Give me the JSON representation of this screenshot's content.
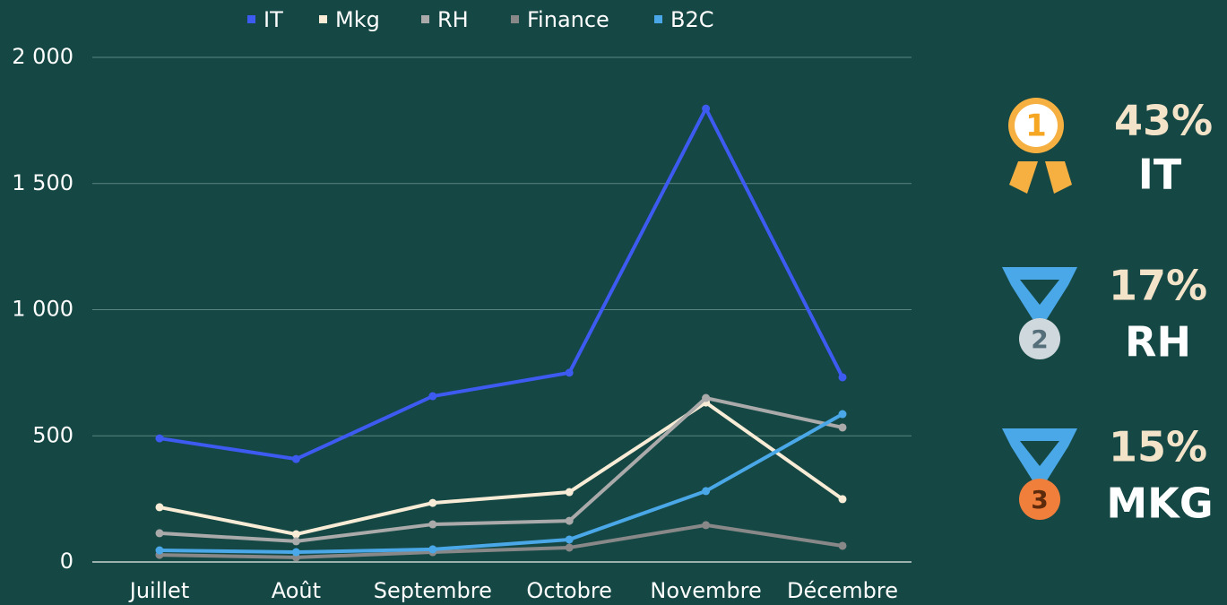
{
  "chart_data": {
    "type": "line",
    "categories": [
      "Juillet",
      "Août",
      "Septembre",
      "Octobre",
      "Novembre",
      "Décembre"
    ],
    "series": [
      {
        "name": "IT",
        "color": "#3d5af1",
        "values": [
          490,
          408,
          657,
          750,
          1797,
          732
        ]
      },
      {
        "name": "Mkg",
        "color": "#f8ecd6",
        "values": [
          217,
          110,
          234,
          277,
          632,
          249
        ]
      },
      {
        "name": "RH",
        "color": "#aaaaaa",
        "values": [
          114,
          82,
          149,
          163,
          650,
          533
        ]
      },
      {
        "name": "Finance",
        "color": "#888888",
        "values": [
          28,
          18,
          39,
          57,
          146,
          64
        ]
      },
      {
        "name": "B2C",
        "color": "#4aa8e8",
        "values": [
          46,
          39,
          50,
          89,
          281,
          586
        ]
      }
    ],
    "ylim": [
      0,
      2000
    ],
    "yticks": [
      0,
      500,
      {
        "value": 1000,
        "label": "1 000"
      },
      {
        "value": 1500,
        "label": "1 500"
      },
      {
        "value": 2000,
        "label": "2 000"
      }
    ],
    "grid": true
  },
  "ranking": [
    {
      "percent": "43%",
      "label": "IT"
    },
    {
      "percent": "17%",
      "label": "RH"
    },
    {
      "percent": "15%",
      "label": "MKG"
    }
  ]
}
